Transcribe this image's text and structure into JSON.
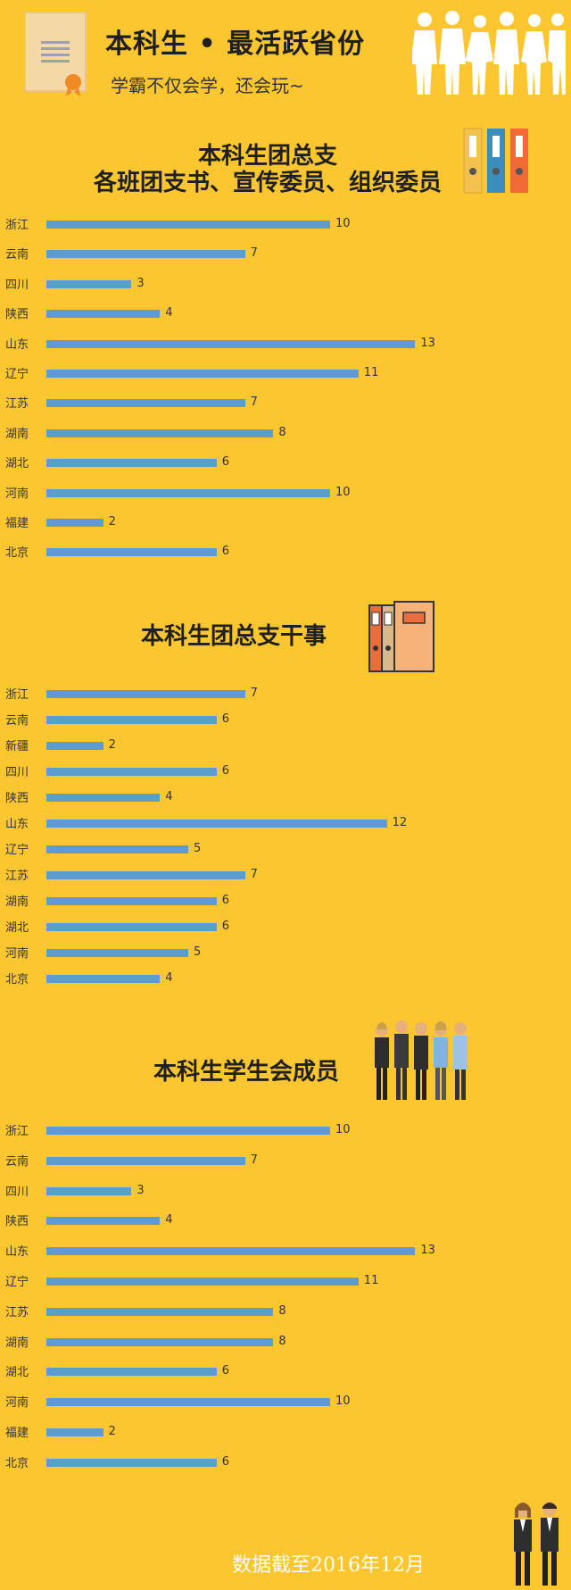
{
  "header": {
    "title": "本科生 • 最活跃省份",
    "subtitle": "学霸不仅会学，还会玩~"
  },
  "colors": {
    "background": "#FBC62F",
    "bar": "#5D9CCE",
    "text": "#222222"
  },
  "icons": [
    "certificate-icon",
    "people-silhouettes-icon",
    "binders-icon",
    "folders-icon",
    "group-people-icon",
    "business-couple-icon"
  ],
  "chart_data": [
    {
      "type": "bar",
      "orientation": "horizontal",
      "title_lines": [
        "本科生团总支",
        "各班团支书、宣传委员、组织委员"
      ],
      "categories": [
        "浙江",
        "云南",
        "四川",
        "陕西",
        "山东",
        "辽宁",
        "江苏",
        "湖南",
        "湖北",
        "河南",
        "福建",
        "北京"
      ],
      "values": [
        10,
        7,
        3,
        4,
        13,
        11,
        7,
        8,
        6,
        10,
        2,
        6
      ]
    },
    {
      "type": "bar",
      "orientation": "horizontal",
      "title_lines": [
        "本科生团总支干事"
      ],
      "categories": [
        "浙江",
        "云南",
        "新疆",
        "四川",
        "陕西",
        "山东",
        "辽宁",
        "江苏",
        "湖南",
        "湖北",
        "河南",
        "北京"
      ],
      "values": [
        7,
        6,
        2,
        6,
        4,
        12,
        5,
        7,
        6,
        6,
        5,
        4
      ]
    },
    {
      "type": "bar",
      "orientation": "horizontal",
      "title_lines": [
        "本科生学生会成员"
      ],
      "categories": [
        "浙江",
        "云南",
        "四川",
        "陕西",
        "山东",
        "辽宁",
        "江苏",
        "湖南",
        "湖北",
        "河南",
        "福建",
        "北京"
      ],
      "values": [
        10,
        7,
        3,
        4,
        13,
        11,
        8,
        8,
        6,
        10,
        2,
        6
      ]
    }
  ],
  "footer": {
    "note": "数据截至2016年12月"
  }
}
